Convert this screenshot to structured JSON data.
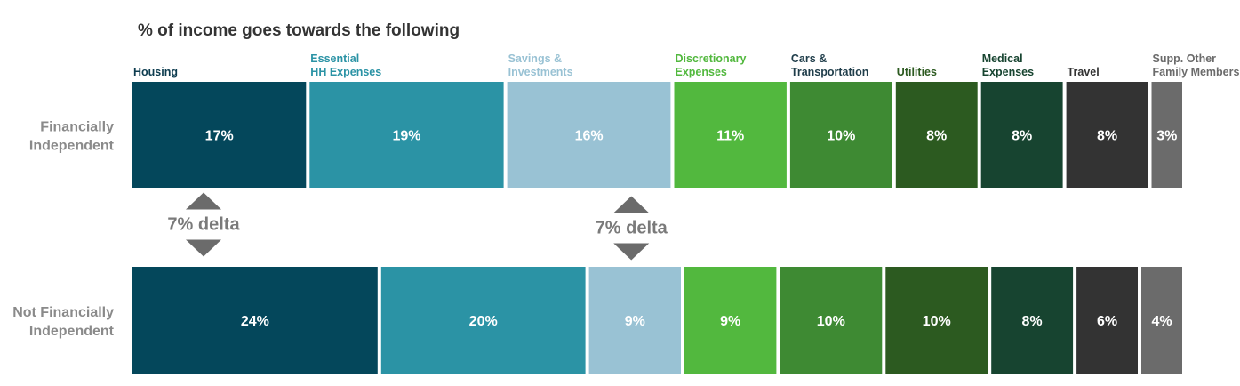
{
  "chart_data": {
    "type": "bar",
    "stacked": true,
    "orientation": "horizontal",
    "title": "% of income goes towards the following",
    "categories": [
      {
        "name": "Housing",
        "color": "#04475b",
        "label_color": "#0d3c4f"
      },
      {
        "name": "Essential HH Expenses",
        "lines": [
          "Essential",
          "HH Expenses"
        ],
        "color": "#2b93a5",
        "label_color": "#2b93a5"
      },
      {
        "name": "Savings & Investments",
        "lines": [
          "Savings &",
          "Investments"
        ],
        "color": "#99c2d4",
        "label_color": "#99c2d4"
      },
      {
        "name": "Discretionary Expenses",
        "lines": [
          "Discretionary",
          "Expenses"
        ],
        "color": "#52b83e",
        "label_color": "#52b83e"
      },
      {
        "name": "Cars & Transportation",
        "lines": [
          "Cars &",
          "Transportation"
        ],
        "color": "#3e8a33",
        "label_color": "#1f3d4a"
      },
      {
        "name": "Utilities",
        "color": "#2c5a20",
        "label_color": "#2c5a20"
      },
      {
        "name": "Medical Expenses",
        "lines": [
          "Medical",
          "Expenses"
        ],
        "color": "#174430",
        "label_color": "#174430"
      },
      {
        "name": "Travel",
        "color": "#333333",
        "label_color": "#333333"
      },
      {
        "name": "Supp. Other Family Members",
        "lines": [
          "Supp. Other",
          "Family Members"
        ],
        "color": "#6b6b6b",
        "label_color": "#6b6b6b"
      }
    ],
    "series": [
      {
        "name": "Financially Independent",
        "lines": [
          "Financially",
          "Independent"
        ],
        "values": [
          17,
          19,
          16,
          11,
          10,
          8,
          8,
          8,
          3
        ],
        "labels": [
          "17%",
          "19%",
          "16%",
          "11%",
          "10%",
          "8%",
          "8%",
          "8%",
          "3%"
        ]
      },
      {
        "name": "Not Financially Independent",
        "lines": [
          "Not Financially",
          "Independent"
        ],
        "values": [
          24,
          20,
          9,
          9,
          10,
          10,
          8,
          6,
          4
        ],
        "labels": [
          "24%",
          "20%",
          "9%",
          "9%",
          "10%",
          "10%",
          "8%",
          "6%",
          "4%"
        ]
      }
    ],
    "annotations": [
      {
        "text": "7% delta",
        "category": "Housing"
      },
      {
        "text": "7% delta",
        "category": "Savings & Investments"
      }
    ],
    "legend": "none",
    "grid": false
  }
}
